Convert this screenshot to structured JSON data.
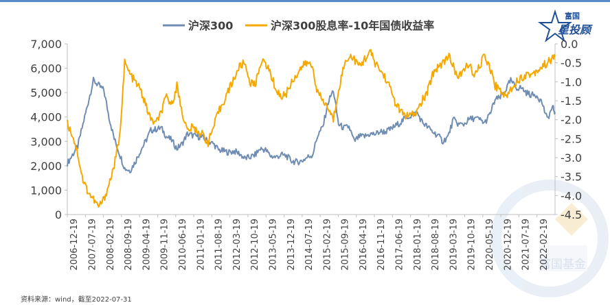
{
  "logo": {
    "text_top": "富国",
    "text_main": "星投顾",
    "watermark_text": "富国基金"
  },
  "source_note": "资料来源：wind，截至2022-07-31",
  "colors": {
    "series_index": "#6f8db3",
    "series_yield": "#f5a800",
    "axis": "#bfbfbf",
    "logo": "#1e4f96",
    "watermark": "#d9e3f0"
  },
  "chart_data": {
    "type": "line",
    "legend_position": "top",
    "grid": false,
    "x_ticks": [
      "2006-12-19",
      "2007-07-19",
      "2008-02-19",
      "2008-09-19",
      "2009-04-19",
      "2009-11-19",
      "2010-06-19",
      "2011-01-19",
      "2011-08-19",
      "2012-03-19",
      "2012-10-19",
      "2013-05-19",
      "2013-12-19",
      "2014-07-19",
      "2015-02-19",
      "2015-09-19",
      "2016-04-19",
      "2016-11-19",
      "2017-06-19",
      "2018-01-19",
      "2018-08-19",
      "2019-03-19",
      "2019-10-19",
      "2020-05-19",
      "2020-12-19",
      "2021-07-19",
      "2022-02-19"
    ],
    "y_left": {
      "min": 0,
      "max": 7000,
      "ticks": [
        "0",
        "1,000",
        "2,000",
        "3,000",
        "4,000",
        "5,000",
        "6,000",
        "7,000"
      ]
    },
    "y_right": {
      "min": -4.5,
      "max": 0.0,
      "ticks": [
        "0.0",
        "-0.5",
        "-1.0",
        "-1.5",
        "-2.0",
        "-2.5",
        "-3.0",
        "-3.5",
        "-4.0",
        "-4.5"
      ]
    },
    "series": [
      {
        "name": "沪深300",
        "axis": "left",
        "x": [
          "2006-12",
          "2007-02",
          "2007-04",
          "2007-06",
          "2007-08",
          "2007-10",
          "2007-12",
          "2008-02",
          "2008-04",
          "2008-06",
          "2008-08",
          "2008-10",
          "2008-12",
          "2009-02",
          "2009-04",
          "2009-06",
          "2009-08",
          "2009-10",
          "2009-12",
          "2010-02",
          "2010-04",
          "2010-06",
          "2010-08",
          "2010-10",
          "2010-12",
          "2011-02",
          "2011-04",
          "2011-06",
          "2011-08",
          "2011-10",
          "2011-12",
          "2012-02",
          "2012-04",
          "2012-06",
          "2012-08",
          "2012-10",
          "2012-12",
          "2013-02",
          "2013-04",
          "2013-06",
          "2013-08",
          "2013-10",
          "2013-12",
          "2014-02",
          "2014-04",
          "2014-06",
          "2014-08",
          "2014-10",
          "2014-12",
          "2015-02",
          "2015-04",
          "2015-06",
          "2015-08",
          "2015-10",
          "2015-12",
          "2016-02",
          "2016-04",
          "2016-06",
          "2016-08",
          "2016-10",
          "2016-12",
          "2017-02",
          "2017-04",
          "2017-06",
          "2017-08",
          "2017-10",
          "2017-12",
          "2018-02",
          "2018-04",
          "2018-06",
          "2018-08",
          "2018-10",
          "2018-12",
          "2019-02",
          "2019-04",
          "2019-06",
          "2019-08",
          "2019-10",
          "2019-12",
          "2020-02",
          "2020-04",
          "2020-06",
          "2020-08",
          "2020-10",
          "2020-12",
          "2021-02",
          "2021-04",
          "2021-06",
          "2021-08",
          "2021-10",
          "2021-12",
          "2022-02",
          "2022-04",
          "2022-06",
          "2022-07"
        ],
        "values": [
          2100,
          2450,
          2800,
          3700,
          4600,
          5500,
          5300,
          5100,
          4000,
          3100,
          2500,
          1900,
          1800,
          2150,
          2600,
          3000,
          3450,
          3500,
          3550,
          3200,
          3050,
          2700,
          2900,
          3300,
          3250,
          3200,
          3150,
          3000,
          2900,
          2650,
          2600,
          2550,
          2600,
          2500,
          2300,
          2350,
          2450,
          2700,
          2650,
          2400,
          2350,
          2450,
          2400,
          2200,
          2150,
          2200,
          2350,
          2450,
          3250,
          3600,
          4600,
          5100,
          3700,
          3550,
          3600,
          3000,
          3200,
          3200,
          3300,
          3300,
          3400,
          3400,
          3500,
          3650,
          3800,
          4000,
          4050,
          4200,
          3800,
          3600,
          3400,
          3250,
          3000,
          3200,
          3900,
          3700,
          3700,
          3900,
          3950,
          3900,
          3750,
          4100,
          4700,
          4800,
          5100,
          5500,
          5200,
          5200,
          5000,
          4900,
          4900,
          4600,
          3900,
          4400,
          4200
        ]
      },
      {
        "name": "沪深300股息率-10年国债收益率",
        "axis": "right",
        "x": [
          "2006-12",
          "2007-02",
          "2007-04",
          "2007-06",
          "2007-08",
          "2007-10",
          "2007-12",
          "2008-02",
          "2008-04",
          "2008-06",
          "2008-08",
          "2008-10",
          "2008-12",
          "2009-02",
          "2009-04",
          "2009-06",
          "2009-08",
          "2009-10",
          "2009-12",
          "2010-02",
          "2010-04",
          "2010-06",
          "2010-08",
          "2010-10",
          "2010-12",
          "2011-02",
          "2011-04",
          "2011-06",
          "2011-08",
          "2011-10",
          "2011-12",
          "2012-02",
          "2012-04",
          "2012-06",
          "2012-08",
          "2012-10",
          "2012-12",
          "2013-02",
          "2013-04",
          "2013-06",
          "2013-08",
          "2013-10",
          "2013-12",
          "2014-02",
          "2014-04",
          "2014-06",
          "2014-08",
          "2014-10",
          "2014-12",
          "2015-02",
          "2015-04",
          "2015-06",
          "2015-08",
          "2015-10",
          "2015-12",
          "2016-02",
          "2016-04",
          "2016-06",
          "2016-08",
          "2016-10",
          "2016-12",
          "2017-02",
          "2017-04",
          "2017-06",
          "2017-08",
          "2017-10",
          "2017-12",
          "2018-02",
          "2018-04",
          "2018-06",
          "2018-08",
          "2018-10",
          "2018-12",
          "2019-02",
          "2019-04",
          "2019-06",
          "2019-08",
          "2019-10",
          "2019-12",
          "2020-02",
          "2020-04",
          "2020-06",
          "2020-08",
          "2020-10",
          "2020-12",
          "2021-02",
          "2021-04",
          "2021-06",
          "2021-08",
          "2021-10",
          "2021-12",
          "2022-02",
          "2022-04",
          "2022-06",
          "2022-07"
        ],
        "values": [
          -2.1,
          -2.4,
          -2.9,
          -3.6,
          -3.9,
          -4.1,
          -4.3,
          -4.1,
          -3.7,
          -3.2,
          -2.5,
          -0.5,
          -0.8,
          -1.0,
          -1.2,
          -1.6,
          -2.0,
          -2.1,
          -1.8,
          -1.4,
          -1.6,
          -1.1,
          -1.8,
          -2.3,
          -2.2,
          -2.3,
          -2.4,
          -2.6,
          -2.2,
          -1.8,
          -1.5,
          -1.2,
          -0.9,
          -0.6,
          -0.5,
          -1.0,
          -1.1,
          -0.5,
          -0.5,
          -0.8,
          -1.2,
          -1.4,
          -1.3,
          -1.0,
          -0.8,
          -0.6,
          -0.5,
          -0.6,
          -1.3,
          -1.5,
          -1.7,
          -2.0,
          -1.2,
          -0.6,
          -0.3,
          -0.4,
          -0.6,
          -0.4,
          -0.2,
          -0.5,
          -0.7,
          -0.9,
          -1.2,
          -1.6,
          -1.8,
          -1.9,
          -1.9,
          -1.8,
          -1.5,
          -1.3,
          -0.8,
          -0.6,
          -0.5,
          -0.3,
          -0.6,
          -0.9,
          -0.7,
          -0.5,
          -0.9,
          -0.6,
          -0.3,
          -0.6,
          -1.1,
          -1.2,
          -1.4,
          -1.2,
          -1.0,
          -0.9,
          -0.8,
          -0.8,
          -0.7,
          -0.6,
          -0.5,
          -0.4,
          -0.3
        ]
      }
    ]
  }
}
